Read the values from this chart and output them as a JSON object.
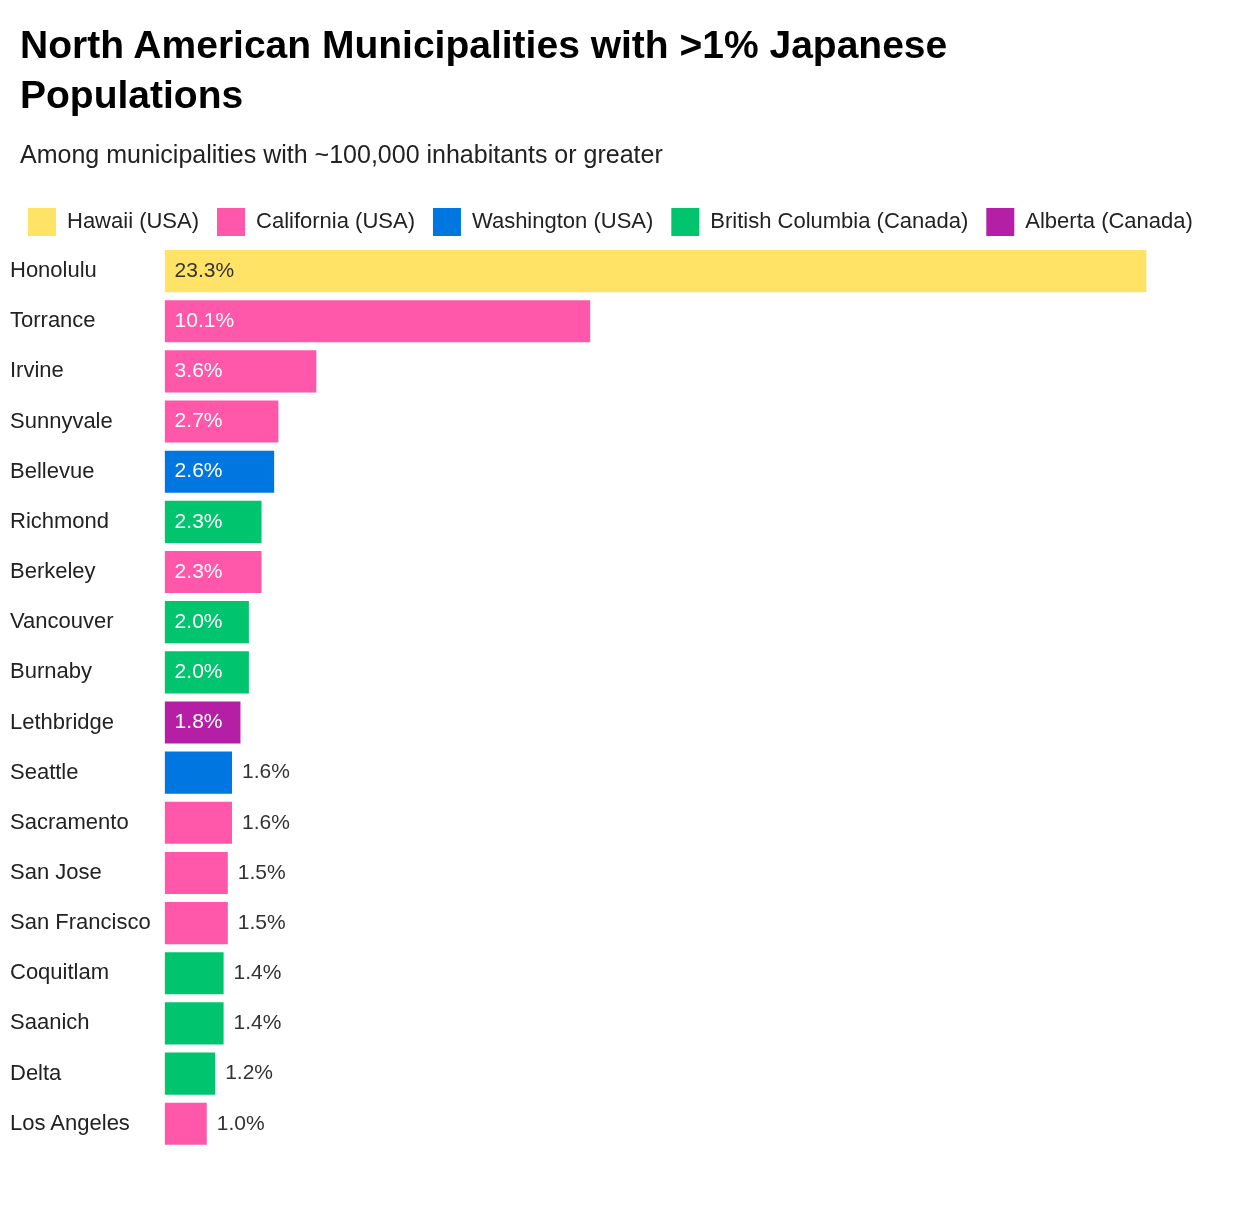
{
  "chart_data": {
    "type": "bar",
    "orientation": "horizontal",
    "title": "North American Municipalities with >1% Japanese Populations",
    "subtitle": "Among municipalities with ~100,000 inhabitants or greater",
    "legend": "top left",
    "categories": [
      "Honolulu",
      "Torrance",
      "Irvine",
      "Sunnyvale",
      "Bellevue",
      "Richmond",
      "Berkeley",
      "Vancouver",
      "Burnaby",
      "Lethbridge",
      "Seattle",
      "Sacramento",
      "San Jose",
      "San Francisco",
      "Coquitlam",
      "Saanich",
      "Delta",
      "Los Angeles"
    ],
    "series": [
      {
        "name": "Hawaii (USA)",
        "color": "#fee366",
        "values": [
          23.3,
          null,
          null,
          null,
          null,
          null,
          null,
          null,
          null,
          null,
          null,
          null,
          null,
          null,
          null,
          null,
          null,
          null
        ],
        "value_labels": [
          "23.3%",
          null,
          null,
          null,
          null,
          null,
          null,
          null,
          null,
          null,
          null,
          null,
          null,
          null,
          null,
          null,
          null,
          null
        ]
      },
      {
        "name": "California (USA)",
        "color": "#ff57aa",
        "values": [
          null,
          10.1,
          3.6,
          2.7,
          null,
          null,
          2.3,
          null,
          null,
          null,
          null,
          1.6,
          1.5,
          1.5,
          null,
          null,
          null,
          1.0
        ],
        "value_labels": [
          null,
          "10.1%",
          "3.6%",
          "2.7%",
          null,
          null,
          "2.3%",
          null,
          null,
          null,
          null,
          "1.6%",
          "1.5%",
          "1.5%",
          null,
          null,
          null,
          "1.0%"
        ]
      },
      {
        "name": "Washington (USA)",
        "color": "#0077e0",
        "values": [
          null,
          null,
          null,
          null,
          2.6,
          null,
          null,
          null,
          null,
          null,
          1.6,
          null,
          null,
          null,
          null,
          null,
          null,
          null
        ],
        "value_labels": [
          null,
          null,
          null,
          null,
          "2.6%",
          null,
          null,
          null,
          null,
          null,
          "1.6%",
          null,
          null,
          null,
          null,
          null,
          null,
          null
        ]
      },
      {
        "name": "British Columbia (Canada)",
        "color": "#00c46e",
        "values": [
          null,
          null,
          null,
          null,
          null,
          2.3,
          null,
          2.0,
          2.0,
          null,
          null,
          null,
          null,
          null,
          1.4,
          1.4,
          1.2,
          null
        ],
        "value_labels": [
          null,
          null,
          null,
          null,
          null,
          "2.3%",
          null,
          "2.0%",
          "2.0%",
          null,
          null,
          null,
          null,
          null,
          "1.4%",
          "1.4%",
          "1.2%",
          null
        ]
      },
      {
        "name": "Alberta (Canada)",
        "color": "#b41fa5",
        "values": [
          null,
          null,
          null,
          null,
          null,
          null,
          null,
          null,
          null,
          1.8,
          null,
          null,
          null,
          null,
          null,
          null,
          null,
          null
        ],
        "value_labels": [
          null,
          null,
          null,
          null,
          null,
          null,
          null,
          null,
          null,
          "1.8%",
          null,
          null,
          null,
          null,
          null,
          null,
          null,
          null
        ]
      }
    ]
  }
}
